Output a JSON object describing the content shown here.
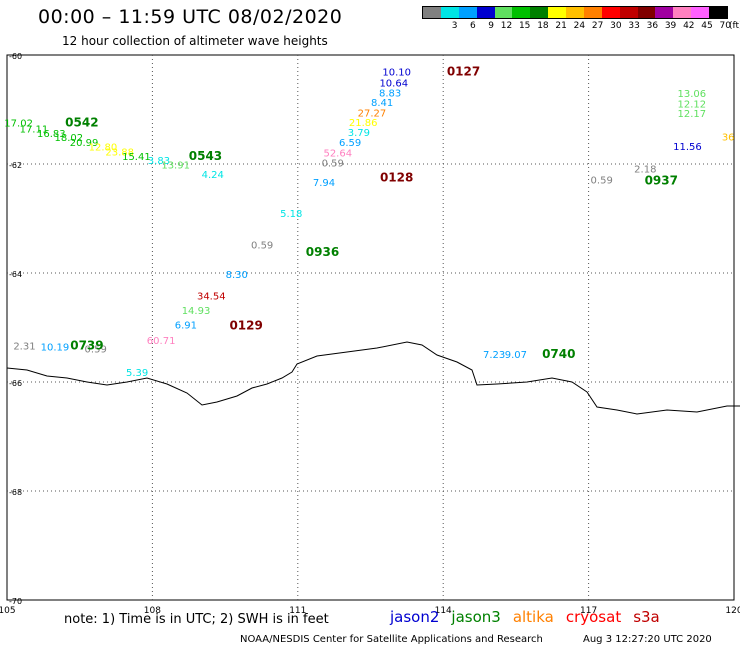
{
  "header": {
    "title": "00:00 – 11:59 UTC 08/02/2020",
    "subtitle": "12 hour collection of altimeter wave heights"
  },
  "legend": {
    "colors": [
      "#808080",
      "#00e5e5",
      "#00a0ff",
      "#0000d0",
      "#60e060",
      "#00c000",
      "#008000",
      "#ffff00",
      "#ffc000",
      "#ff8000",
      "#ff0000",
      "#c00000",
      "#800000",
      "#a000a0",
      "#ff80c0",
      "#ff60ff",
      "#000000"
    ],
    "labels": [
      "3",
      "6",
      "9",
      "12",
      "15",
      "18",
      "21",
      "24",
      "27",
      "30",
      "33",
      "36",
      "39",
      "42",
      "45",
      "70"
    ],
    "unit": "(ft)"
  },
  "axes": {
    "lon_ticks": [
      "105",
      "108",
      "111",
      "114",
      "117",
      "120"
    ],
    "lat_ticks": [
      "-60",
      "-62",
      "-64",
      "-66",
      "-68",
      "-70"
    ]
  },
  "coastline": [
    [
      0,
      368
    ],
    [
      20,
      370
    ],
    [
      40,
      376
    ],
    [
      60,
      378
    ],
    [
      80,
      382
    ],
    [
      100,
      385
    ],
    [
      120,
      382
    ],
    [
      140,
      378
    ],
    [
      160,
      384
    ],
    [
      180,
      393
    ],
    [
      195,
      405
    ],
    [
      210,
      402
    ],
    [
      230,
      396
    ],
    [
      245,
      388
    ],
    [
      260,
      384
    ],
    [
      275,
      378
    ],
    [
      285,
      372
    ],
    [
      290,
      364
    ],
    [
      310,
      356
    ],
    [
      340,
      352
    ],
    [
      370,
      348
    ],
    [
      400,
      342
    ],
    [
      415,
      345
    ],
    [
      430,
      355
    ],
    [
      450,
      362
    ],
    [
      465,
      370
    ],
    [
      470,
      385
    ],
    [
      490,
      384
    ],
    [
      520,
      382
    ],
    [
      545,
      378
    ],
    [
      565,
      382
    ],
    [
      580,
      392
    ],
    [
      590,
      407
    ],
    [
      610,
      410
    ],
    [
      630,
      414
    ],
    [
      660,
      410
    ],
    [
      690,
      412
    ],
    [
      720,
      406
    ],
    [
      735,
      406
    ]
  ],
  "passes": [
    {
      "id": "0127",
      "color": "#800000",
      "rel": [
        0.605,
        0.038
      ]
    },
    {
      "id": "0128",
      "color": "#800000",
      "rel": [
        0.513,
        0.232
      ]
    },
    {
      "id": "0129",
      "color": "#800000",
      "rel": [
        0.306,
        0.504
      ]
    },
    {
      "id": "0542",
      "color": "#008000",
      "rel": [
        0.08,
        0.131
      ]
    },
    {
      "id": "0543",
      "color": "#008000",
      "rel": [
        0.25,
        0.193
      ]
    },
    {
      "id": "0739",
      "color": "#008000",
      "rel": [
        0.087,
        0.54
      ]
    },
    {
      "id": "0740",
      "color": "#008000",
      "rel": [
        0.736,
        0.556
      ]
    },
    {
      "id": "0936",
      "color": "#008000",
      "rel": [
        0.411,
        0.369
      ]
    },
    {
      "id": "0937",
      "color": "#008000",
      "rel": [
        0.877,
        0.238
      ]
    }
  ],
  "swh_values": [
    {
      "v": "10.10",
      "color": "#0000d0",
      "rel": [
        0.536,
        0.038
      ]
    },
    {
      "v": "10.64",
      "color": "#0000d0",
      "rel": [
        0.532,
        0.058
      ]
    },
    {
      "v": "8.83",
      "color": "#00a0ff",
      "rel": [
        0.527,
        0.076
      ]
    },
    {
      "v": "8.41",
      "color": "#00a0ff",
      "rel": [
        0.516,
        0.094
      ]
    },
    {
      "v": "27.27",
      "color": "#ff8000",
      "rel": [
        0.502,
        0.113
      ]
    },
    {
      "v": "21.86",
      "color": "#ffff00",
      "rel": [
        0.49,
        0.13
      ]
    },
    {
      "v": "3.79",
      "color": "#00e5e5",
      "rel": [
        0.484,
        0.149
      ]
    },
    {
      "v": "6.59",
      "color": "#00a0ff",
      "rel": [
        0.472,
        0.167
      ]
    },
    {
      "v": "52.64",
      "color": "#ff80c0",
      "rel": [
        0.455,
        0.186
      ]
    },
    {
      "v": "0.59",
      "color": "#808080",
      "rel": [
        0.448,
        0.205
      ]
    },
    {
      "v": "7.94",
      "color": "#00a0ff",
      "rel": [
        0.436,
        0.24
      ]
    },
    {
      "v": "5.18",
      "color": "#00e5e5",
      "rel": [
        0.391,
        0.297
      ]
    },
    {
      "v": "0.59",
      "color": "#808080",
      "rel": [
        0.351,
        0.355
      ]
    },
    {
      "v": "8.30",
      "color": "#00a0ff",
      "rel": [
        0.316,
        0.409
      ]
    },
    {
      "v": "34.54",
      "color": "#c00000",
      "rel": [
        0.281,
        0.449
      ]
    },
    {
      "v": "14.93",
      "color": "#60e060",
      "rel": [
        0.26,
        0.475
      ]
    },
    {
      "v": "6.91",
      "color": "#00a0ff",
      "rel": [
        0.246,
        0.502
      ]
    },
    {
      "v": "60.71",
      "color": "#ff80c0",
      "rel": [
        0.212,
        0.53
      ]
    },
    {
      "v": "5.39",
      "color": "#00e5e5",
      "rel": [
        0.179,
        0.589
      ]
    },
    {
      "v": "17.02",
      "color": "#00c000",
      "rel": [
        0.016,
        0.131
      ]
    },
    {
      "v": "17.11",
      "color": "#00c000",
      "rel": [
        0.037,
        0.142
      ]
    },
    {
      "v": "16.83",
      "color": "#00c000",
      "rel": [
        0.061,
        0.15
      ]
    },
    {
      "v": "18.02",
      "color": "#00c000",
      "rel": [
        0.085,
        0.158
      ]
    },
    {
      "v": "20.99",
      "color": "#00c000",
      "rel": [
        0.106,
        0.167
      ]
    },
    {
      "v": "12.80",
      "color": "#ffff00",
      "rel": [
        0.132,
        0.175
      ]
    },
    {
      "v": "23.88",
      "color": "#ffff00",
      "rel": [
        0.155,
        0.184
      ]
    },
    {
      "v": "15.41",
      "color": "#00c000",
      "rel": [
        0.178,
        0.193
      ]
    },
    {
      "v": "3.83",
      "color": "#00e5e5",
      "rel": [
        0.209,
        0.2
      ]
    },
    {
      "v": "13.91",
      "color": "#60e060",
      "rel": [
        0.232,
        0.208
      ]
    },
    {
      "v": "4.24",
      "color": "#00e5e5",
      "rel": [
        0.283,
        0.226
      ]
    },
    {
      "v": "2.31",
      "color": "#808080",
      "rel": [
        0.024,
        0.54
      ]
    },
    {
      "v": "10.19",
      "color": "#00a0ff",
      "rel": [
        0.066,
        0.542
      ]
    },
    {
      "v": "0.59",
      "color": "#808080",
      "rel": [
        0.122,
        0.546
      ]
    },
    {
      "v": "7.23",
      "color": "#00a0ff",
      "rel": [
        0.67,
        0.556
      ]
    },
    {
      "v": "9.07",
      "color": "#00a0ff",
      "rel": [
        0.7,
        0.556
      ]
    },
    {
      "v": "13.06",
      "color": "#60e060",
      "rel": [
        0.942,
        0.077
      ]
    },
    {
      "v": "12.12",
      "color": "#60e060",
      "rel": [
        0.942,
        0.096
      ]
    },
    {
      "v": "12.17",
      "color": "#60e060",
      "rel": [
        0.942,
        0.114
      ]
    },
    {
      "v": "11.56",
      "color": "#0000d0",
      "rel": [
        0.936,
        0.174
      ]
    },
    {
      "v": "36",
      "color": "#ffc000",
      "rel": [
        0.992,
        0.157
      ]
    },
    {
      "v": "2.18",
      "color": "#808080",
      "rel": [
        0.878,
        0.216
      ]
    },
    {
      "v": "0.59",
      "color": "#808080",
      "rel": [
        0.818,
        0.236
      ]
    }
  ],
  "footer": {
    "note": "note: 1) Time is in UTC; 2) SWH is in feet",
    "satellites": [
      {
        "name": "jason2",
        "color": "#0000d0"
      },
      {
        "name": "jason3",
        "color": "#008000"
      },
      {
        "name": "altika",
        "color": "#ff8000"
      },
      {
        "name": "cryosat",
        "color": "#ff0000"
      },
      {
        "name": "s3a",
        "color": "#c00000"
      }
    ],
    "credit": "NOAA/NESDIS Center for Satellite Applications and Research",
    "timestamp": "Aug  3 12:27:20 UTC 2020"
  }
}
